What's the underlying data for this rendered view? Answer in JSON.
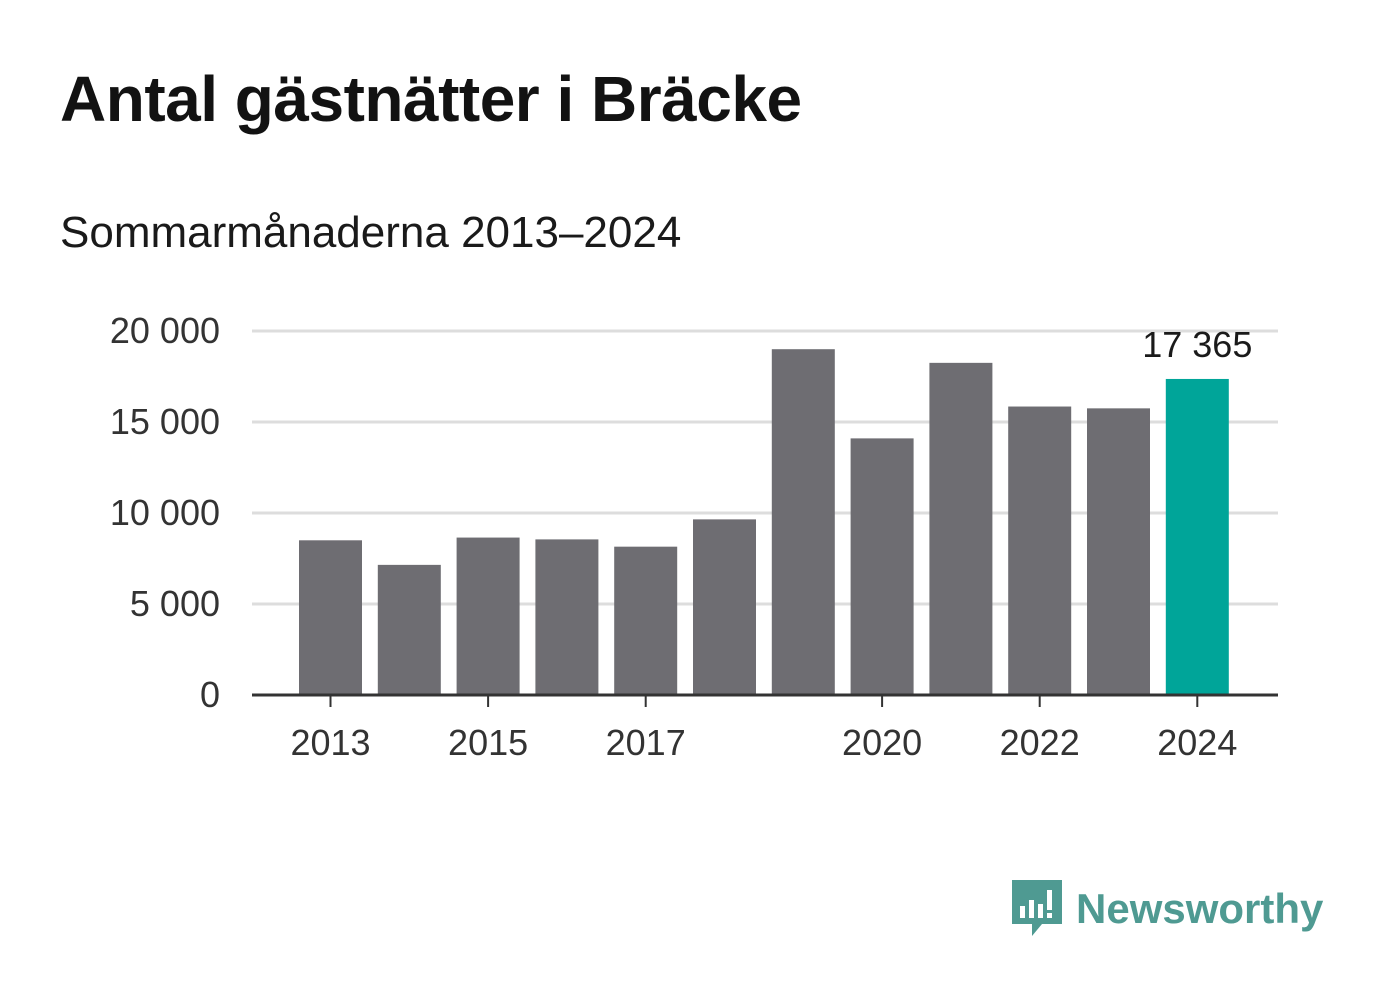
{
  "title": "Antal gästnätter i Bräcke",
  "subtitle": "Sommarmånaderna 2013–2024",
  "brand": {
    "name": "Newsworthy",
    "icon": "newsworthy-logo-icon",
    "color": "#4f9a92"
  },
  "colors": {
    "bar": "#6e6d72",
    "highlight": "#00a599",
    "grid": "#dddddd",
    "axis": "#333333"
  },
  "chart_data": {
    "type": "bar",
    "title": "Antal gästnätter i Bräcke",
    "subtitle": "Sommarmånaderna 2013–2024",
    "categories": [
      "2013",
      "2014",
      "2015",
      "2016",
      "2017",
      "2018",
      "2019",
      "2020",
      "2021",
      "2022",
      "2023",
      "2024"
    ],
    "values": [
      8500,
      7150,
      8650,
      8550,
      8150,
      9650,
      19000,
      14100,
      18250,
      15850,
      15750,
      17365
    ],
    "x_tick_labels": [
      "2013",
      "2015",
      "2017",
      "2020",
      "2022",
      "2024"
    ],
    "y_ticks": [
      0,
      5000,
      10000,
      15000,
      20000
    ],
    "y_tick_labels": [
      "0",
      "5 000",
      "10 000",
      "15 000",
      "20 000"
    ],
    "ylim": [
      0,
      20000
    ],
    "highlight_index": 11,
    "data_labels": [
      {
        "index": 11,
        "text": "17 365"
      }
    ],
    "grid": true,
    "legend": "none"
  }
}
